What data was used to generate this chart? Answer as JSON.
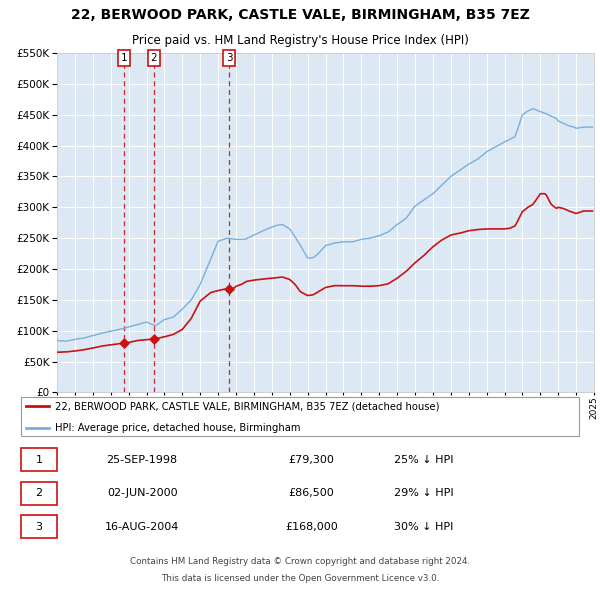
{
  "title": "22, BERWOOD PARK, CASTLE VALE, BIRMINGHAM, B35 7EZ",
  "subtitle": "Price paid vs. HM Land Registry's House Price Index (HPI)",
  "bg_color": "#dce9f5",
  "legend_label_red": "22, BERWOOD PARK, CASTLE VALE, BIRMINGHAM, B35 7EZ (detached house)",
  "legend_label_blue": "HPI: Average price, detached house, Birmingham",
  "footer1": "Contains HM Land Registry data © Crown copyright and database right 2024.",
  "footer2": "This data is licensed under the Open Government Licence v3.0.",
  "transactions": [
    {
      "num": 1,
      "date": 1998.73,
      "price": 79300,
      "label": "25-SEP-1998",
      "pct": "25% ↓ HPI"
    },
    {
      "num": 2,
      "date": 2000.42,
      "price": 86500,
      "label": "02-JUN-2000",
      "pct": "29% ↓ HPI"
    },
    {
      "num": 3,
      "date": 2004.62,
      "price": 168000,
      "label": "16-AUG-2004",
      "pct": "30% ↓ HPI"
    }
  ],
  "red_color": "#cc1111",
  "blue_color": "#7aaedc",
  "dashed_color": "#cc1111",
  "box_color": "#cc1111",
  "ylim": [
    0,
    550000
  ],
  "xlim": [
    1995,
    2025
  ]
}
